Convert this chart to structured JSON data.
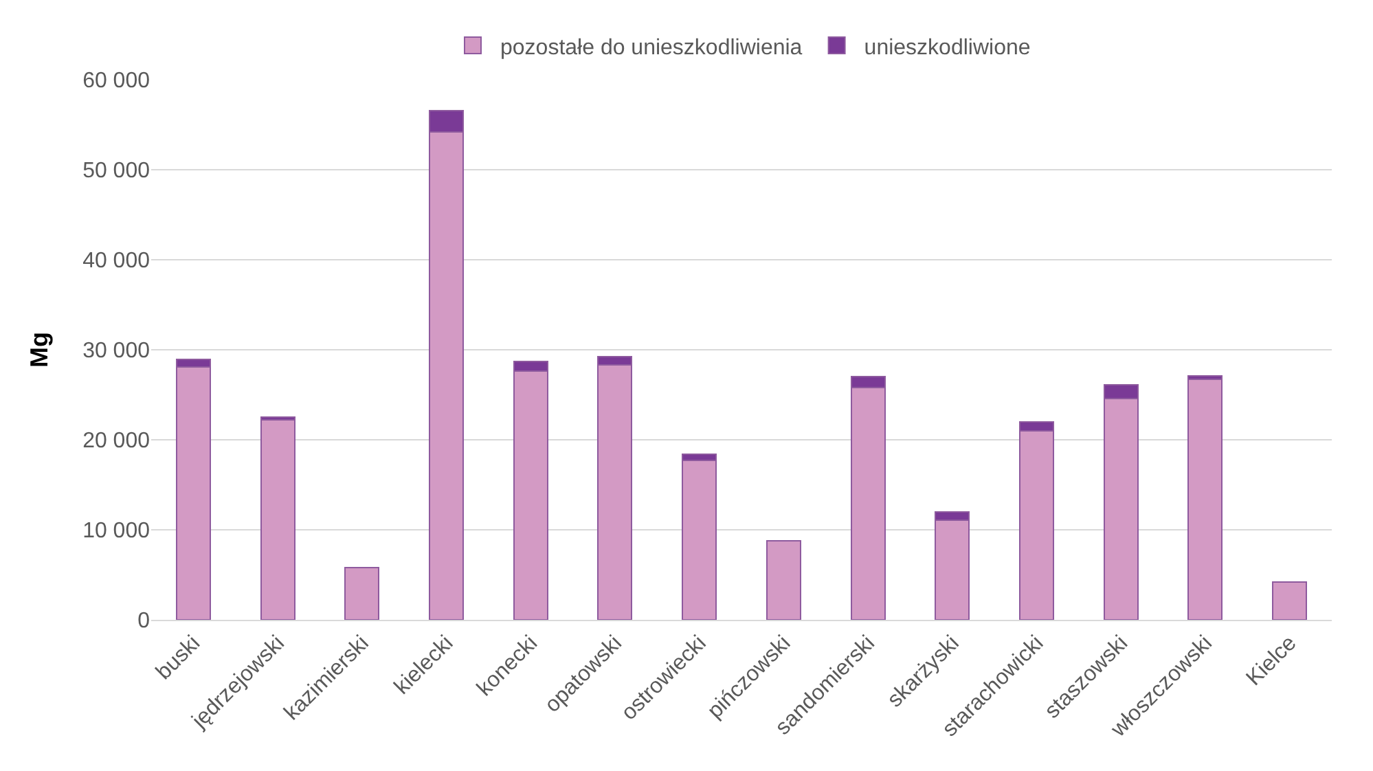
{
  "chart_data": {
    "type": "bar",
    "stacked": true,
    "ylabel": "Mg",
    "categories": [
      "buski",
      "jędrzejowski",
      "kazimierski",
      "kielecki",
      "konecki",
      "opatowski",
      "ostrowiecki",
      "pińczowski",
      "sandomierski",
      "skarżyski",
      "starachowicki",
      "staszowski",
      "włoszczowski",
      "Kielce"
    ],
    "series": [
      {
        "name": "pozostałe do unieszkodliwienia",
        "color": "#d39ac4",
        "values": [
          28100,
          22200,
          5800,
          54200,
          27600,
          28300,
          17700,
          8800,
          25800,
          11100,
          21000,
          24600,
          26700,
          4200
        ]
      },
      {
        "name": "unieszkodliwione",
        "color": "#7a3a96",
        "values": [
          800,
          300,
          0,
          2400,
          1100,
          900,
          700,
          0,
          1200,
          900,
          1000,
          1500,
          400,
          0
        ]
      }
    ],
    "ylim": [
      0,
      60000
    ],
    "yticks": [
      {
        "value": 0,
        "label": "0"
      },
      {
        "value": 10000,
        "label": "10 000"
      },
      {
        "value": 20000,
        "label": "20 000"
      },
      {
        "value": 30000,
        "label": "30 000"
      },
      {
        "value": 40000,
        "label": "40 000"
      },
      {
        "value": 50000,
        "label": "50 000"
      },
      {
        "value": 60000,
        "label": "60 000"
      }
    ],
    "grid": "y",
    "legend": "top"
  }
}
